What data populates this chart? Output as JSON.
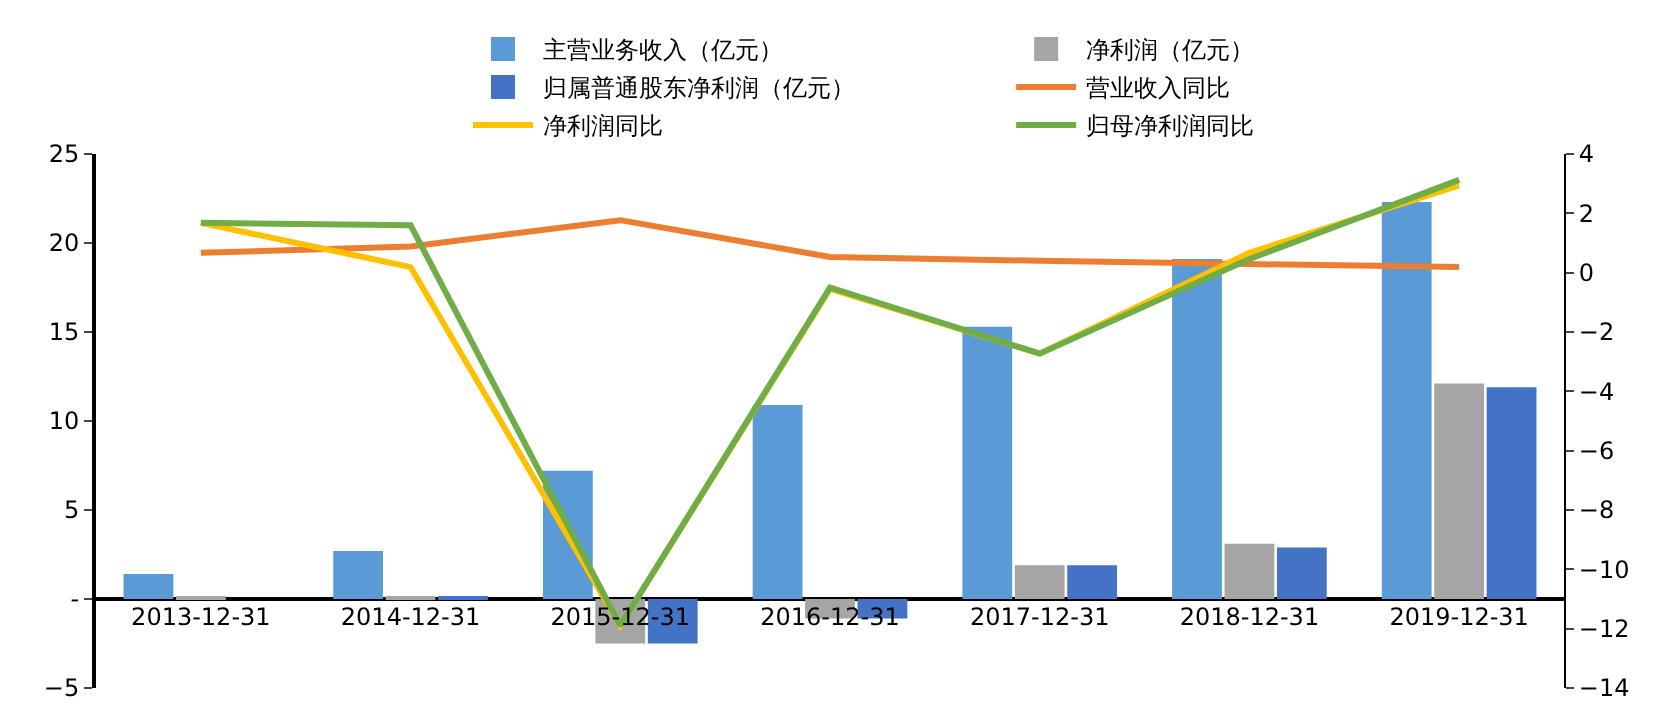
{
  "chart_data": {
    "type": "bar",
    "categories": [
      "2013-12-31",
      "2014-12-31",
      "2015-12-31",
      "2016-12-31",
      "2017-12-31",
      "2018-12-31",
      "2019-12-31"
    ],
    "series": [
      {
        "name": "主营业务收入（亿元）",
        "type": "bar",
        "color": "#5b9bd5",
        "values": [
          1.4,
          2.7,
          7.2,
          10.9,
          15.3,
          19.1,
          22.3
        ]
      },
      {
        "name": "净利润（亿元）",
        "type": "bar",
        "color": "#a5a5a5",
        "values": [
          0.1,
          0.1,
          -2.5,
          -1.1,
          1.9,
          3.1,
          12.1
        ]
      },
      {
        "name": "归属普通股东净利润（亿元）",
        "type": "bar",
        "color": "#4472c4",
        "values": [
          0.0,
          0.1,
          -2.5,
          -1.1,
          1.9,
          2.9,
          11.9
        ]
      },
      {
        "name": "营业收入同比",
        "type": "line",
        "axis": "y2",
        "color": "#ed7d31",
        "values": [
          0.67,
          0.88,
          1.77,
          0.53,
          0.4,
          0.29,
          0.19
        ]
      },
      {
        "name": "净利润同比",
        "type": "line",
        "axis": "y2",
        "color": "#ffc000",
        "values": [
          1.68,
          0.19,
          -11.9,
          -0.55,
          -2.73,
          0.67,
          2.94
        ]
      },
      {
        "name": "归母净利润同比",
        "type": "line",
        "axis": "y2",
        "color": "#70ad47",
        "values": [
          1.68,
          1.6,
          -11.9,
          -0.5,
          -2.73,
          0.46,
          3.13
        ]
      }
    ],
    "ylim": [
      -5,
      25
    ],
    "yticks": [
      -5,
      {
        "value": 0,
        "label": "-"
      },
      5,
      10,
      15,
      20,
      25
    ],
    "y2lim": [
      -14,
      4
    ],
    "y2ticks": [
      -14,
      -12,
      -10,
      -8,
      -6,
      -4,
      -2,
      0,
      2,
      4
    ],
    "legend": "top",
    "grid": false,
    "marker": "none",
    "line_style": "solid"
  }
}
